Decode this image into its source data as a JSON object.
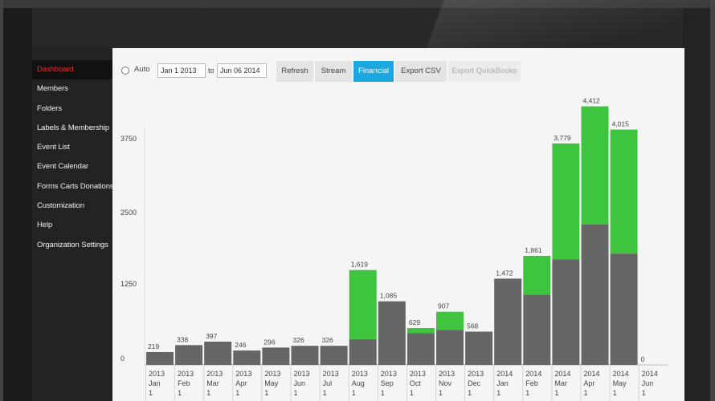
{
  "sidebar": {
    "items": [
      {
        "label": "Dashboard",
        "active": true
      },
      {
        "label": "Members"
      },
      {
        "label": "Folders"
      },
      {
        "label": "Labels & Membership"
      },
      {
        "label": "Event List"
      },
      {
        "label": "Event Calendar"
      },
      {
        "label": "Forms Carts Donations"
      },
      {
        "label": "Customization"
      },
      {
        "label": "Help"
      },
      {
        "label": "Organization Settings"
      }
    ]
  },
  "toolbar": {
    "auto_label": "Auto",
    "from_date": "Jan 1 2013",
    "to_label": "to",
    "to_date": "Jun 06 2014",
    "buttons": [
      {
        "label": "Refresh"
      },
      {
        "label": "Stream"
      },
      {
        "label": "Financial",
        "active": true
      },
      {
        "label": "Export CSV"
      },
      {
        "label": "Export QuickBooks",
        "disabled": true
      }
    ]
  },
  "colors": {
    "accent": "#1ba8e0",
    "nav_active": "#e03030",
    "bar_gray": "#666666",
    "bar_green": "#3ec43e",
    "bar_green_light": "#6fd66a"
  },
  "chart_data": {
    "type": "bar",
    "stacked": true,
    "yticks": [
      0,
      1250,
      2500,
      3750
    ],
    "ylim": [
      0,
      4600
    ],
    "categories": [
      {
        "year": "2013",
        "month": "Jan",
        "day": "1"
      },
      {
        "year": "2013",
        "month": "Feb",
        "day": "1"
      },
      {
        "year": "2013",
        "month": "Mar",
        "day": "1"
      },
      {
        "year": "2013",
        "month": "Apr",
        "day": "1"
      },
      {
        "year": "2013",
        "month": "May",
        "day": "1"
      },
      {
        "year": "2013",
        "month": "Jun",
        "day": "1"
      },
      {
        "year": "2013",
        "month": "Jul",
        "day": "1"
      },
      {
        "year": "2013",
        "month": "Aug",
        "day": "1"
      },
      {
        "year": "2013",
        "month": "Sep",
        "day": "1"
      },
      {
        "year": "2013",
        "month": "Oct",
        "day": "1"
      },
      {
        "year": "2013",
        "month": "Nov",
        "day": "1"
      },
      {
        "year": "2013",
        "month": "Dec",
        "day": "1"
      },
      {
        "year": "2014",
        "month": "Jan",
        "day": "1"
      },
      {
        "year": "2014",
        "month": "Feb",
        "day": "1"
      },
      {
        "year": "2014",
        "month": "Mar",
        "day": "1"
      },
      {
        "year": "2014",
        "month": "Apr",
        "day": "1"
      },
      {
        "year": "2014",
        "month": "May",
        "day": "1"
      },
      {
        "year": "2014",
        "month": "Jun",
        "day": "1"
      }
    ],
    "totals": [
      "219",
      "338",
      "397",
      "246",
      "296",
      "326",
      "326",
      "1,619",
      "1,085",
      "629",
      "907",
      "568",
      "1,472",
      "1,861",
      "3,779",
      "4,412",
      "4,015",
      "0"
    ],
    "series": [
      {
        "color": "#666666",
        "values": [
          219,
          338,
          397,
          246,
          296,
          326,
          326,
          440,
          1085,
          540,
          600,
          568,
          1472,
          1200,
          1800,
          2400,
          1900,
          0
        ]
      },
      {
        "color": "#3ec43e",
        "values": [
          0,
          0,
          0,
          0,
          0,
          0,
          0,
          1179,
          0,
          89,
          307,
          0,
          0,
          661,
          1979,
          2012,
          2115,
          0
        ]
      }
    ]
  }
}
